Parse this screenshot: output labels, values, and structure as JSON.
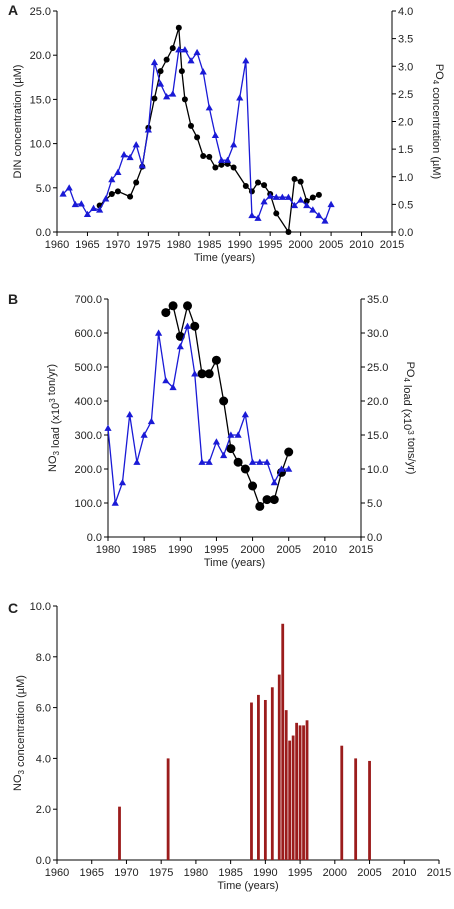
{
  "chart_data": [
    {
      "panel_label": "A",
      "type": "line",
      "xlabel": "Time (years)",
      "ylabel_left": "DIN concentration (µM)",
      "ylabel_right": "PO4 concentration (µM)",
      "xlim": [
        1960,
        2015
      ],
      "xticks": [
        "1960",
        "1965",
        "1970",
        "1975",
        "1980",
        "1985",
        "1990",
        "1995",
        "2000",
        "2005",
        "2010",
        "2015"
      ],
      "ylim_left": [
        0,
        25
      ],
      "yticks_left": [
        "0.0",
        "5.0",
        "10.0",
        "15.0",
        "20.0",
        "25.0"
      ],
      "ylim_right": [
        0,
        4
      ],
      "yticks_right": [
        "0.0",
        "0.5",
        "1.0",
        "1.5",
        "2.0",
        "2.5",
        "3.0",
        "3.5",
        "4.0"
      ],
      "colors": {
        "din": "#000000",
        "po4": "#1a1ad6"
      },
      "series": [
        {
          "axis": "left",
          "marker": "circle",
          "x": [
            1967,
            1969,
            1970,
            1972,
            1973,
            1974,
            1975,
            1976,
            1977,
            1978,
            1979,
            1980,
            1980.5,
            1981,
            1982,
            1983,
            1984,
            1985,
            1986,
            1987,
            1988,
            1989,
            1991,
            1992,
            1993,
            1994,
            1995,
            1996,
            1998,
            1999,
            2000,
            2001,
            2002,
            2003
          ],
          "y": [
            3.0,
            4.3,
            4.6,
            4.0,
            5.6,
            7.4,
            11.8,
            15.1,
            18.2,
            19.5,
            20.8,
            23.1,
            18.2,
            15.0,
            12.0,
            10.7,
            8.6,
            8.5,
            7.3,
            7.6,
            7.7,
            7.3,
            5.2,
            4.6,
            5.6,
            5.3,
            4.3,
            2.1,
            0.0,
            6.0,
            5.7,
            3.5,
            3.9,
            4.2
          ]
        },
        {
          "axis": "right",
          "marker": "triangle",
          "x": [
            1961,
            1962,
            1963,
            1964,
            1965,
            1966,
            1967,
            1968,
            1969,
            1970,
            1971,
            1972,
            1973,
            1974,
            1975,
            1976,
            1977,
            1978,
            1979,
            1980,
            1981,
            1982,
            1983,
            1984,
            1985,
            1986,
            1987,
            1988,
            1989,
            1990,
            1991,
            1992,
            1993,
            1994,
            1995,
            1996,
            1997,
            1998,
            1999,
            2000,
            2001,
            2002,
            2003,
            2004,
            2005
          ],
          "y": [
            0.69,
            0.8,
            0.5,
            0.51,
            0.32,
            0.43,
            0.4,
            0.6,
            0.95,
            1.08,
            1.4,
            1.35,
            1.58,
            1.2,
            1.85,
            3.07,
            2.68,
            2.45,
            2.5,
            3.3,
            3.3,
            3.1,
            3.25,
            2.9,
            2.25,
            1.75,
            1.3,
            1.3,
            1.58,
            2.43,
            3.1,
            0.3,
            0.25,
            0.55,
            0.65,
            0.63,
            0.63,
            0.63,
            0.48,
            0.58,
            0.48,
            0.4,
            0.3,
            0.2,
            0.5
          ]
        }
      ]
    },
    {
      "panel_label": "B",
      "type": "line",
      "xlabel": "Time (years)",
      "ylabel_left": "NO3 load (x10³ ton/yr)",
      "ylabel_right": "PO4 load (x10³ tons/yr)",
      "xlim": [
        1980,
        2015
      ],
      "xticks": [
        "1980",
        "1985",
        "1990",
        "1995",
        "2000",
        "2005",
        "2010",
        "2015"
      ],
      "ylim_left": [
        0,
        700
      ],
      "yticks_left": [
        "0.0",
        "100.0",
        "200.0",
        "300.0",
        "400.0",
        "500.0",
        "600.0",
        "700.0"
      ],
      "ylim_right": [
        0,
        35
      ],
      "yticks_right": [
        "0.0",
        "5.0",
        "10.0",
        "15.0",
        "20.0",
        "25.0",
        "30.0",
        "35.0"
      ],
      "colors": {
        "no3": "#000000",
        "po4": "#1a1ad6"
      },
      "series": [
        {
          "axis": "left",
          "marker": "circle",
          "x": [
            1988,
            1989,
            1990,
            1991,
            1992,
            1993,
            1994,
            1995,
            1996,
            1997,
            1998,
            1999,
            2000,
            2001,
            2002,
            2003,
            2004,
            2005
          ],
          "y": [
            660,
            680,
            590,
            680,
            620,
            480,
            480,
            520,
            400,
            260,
            220,
            200,
            150,
            90,
            110,
            110,
            190,
            250
          ]
        },
        {
          "axis": "right",
          "marker": "triangle",
          "x": [
            1980,
            1981,
            1982,
            1983,
            1984,
            1985,
            1986,
            1987,
            1988,
            1989,
            1990,
            1991,
            1992,
            1993,
            1994,
            1995,
            1996,
            1997,
            1998,
            1999,
            2000,
            2001,
            2002,
            2003,
            2004,
            2005
          ],
          "y": [
            16,
            5,
            8,
            18,
            11,
            15,
            17,
            30,
            23,
            22,
            28,
            31,
            24,
            11,
            11,
            14,
            12,
            15,
            15,
            18,
            11,
            11,
            11,
            8,
            10,
            10
          ]
        }
      ]
    },
    {
      "panel_label": "C",
      "type": "bar",
      "xlabel": "Time (years)",
      "ylabel": "NO3 concentration (µM)",
      "xlim": [
        1960,
        2015
      ],
      "xticks": [
        "1960",
        "1965",
        "1970",
        "1975",
        "1980",
        "1985",
        "1990",
        "1995",
        "2000",
        "2005",
        "2010",
        "2015"
      ],
      "ylim": [
        0,
        10
      ],
      "yticks": [
        "0.0",
        "2.0",
        "4.0",
        "6.0",
        "8.0",
        "10.0"
      ],
      "color": "#9b1c1c",
      "x": [
        1969,
        1976,
        1988,
        1989,
        1990,
        1991,
        1992,
        1992.5,
        1993,
        1993.5,
        1994,
        1994.5,
        1995,
        1995.5,
        1996,
        2001,
        2003,
        2005
      ],
      "y": [
        2.1,
        4.0,
        6.2,
        6.5,
        6.3,
        6.8,
        7.3,
        9.3,
        5.9,
        4.7,
        4.9,
        5.4,
        5.3,
        5.3,
        5.5,
        4.5,
        4.0,
        3.9
      ]
    }
  ]
}
